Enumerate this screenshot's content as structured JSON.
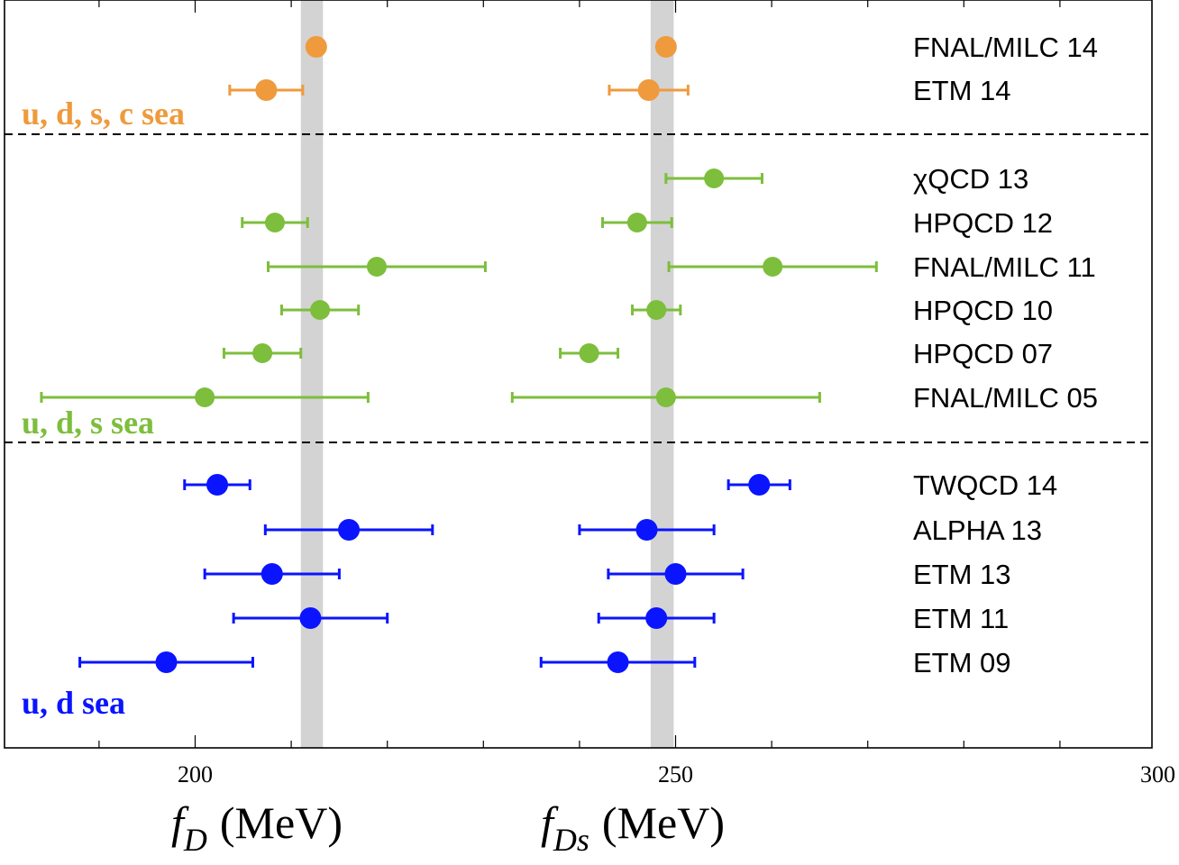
{
  "chart_data": {
    "type": "scatter",
    "panels": [
      "f_D",
      "f_Ds"
    ],
    "xlabel_left": {
      "symbol": "f",
      "sub": "D",
      "unit": "(MeV)"
    },
    "xlabel_right": {
      "symbol": "f",
      "sub": "Ds",
      "unit": "(MeV)"
    },
    "x_ticks": [
      200,
      250,
      300
    ],
    "xlim": [
      180,
      300
    ],
    "grid": false,
    "legend": "right",
    "bands": [
      {
        "panel": "f_D",
        "center": 212.15,
        "half_width": 1.15
      },
      {
        "panel": "f_Ds",
        "center": 248.6,
        "half_width": 1.2
      }
    ],
    "groups": [
      {
        "label": "u, d, s, c sea",
        "color": "#ef9a3c",
        "entries": [
          {
            "name": "FNAL/MILC 14",
            "fD": 212.6,
            "fD_err": 0.5,
            "fDs": 249.0,
            "fDs_err": 0.8
          },
          {
            "name": "ETM 14",
            "fD": 207.4,
            "fD_err": 3.8,
            "fDs": 247.2,
            "fDs_err": 4.1
          }
        ]
      },
      {
        "label": "u, d, s sea",
        "color": "#7dbe3c",
        "entries": [
          {
            "name": "χQCD 13",
            "fD": null,
            "fD_err": null,
            "fDs": 254.0,
            "fDs_err": 5.0
          },
          {
            "name": "HPQCD 12",
            "fD": 208.3,
            "fD_err": 3.4,
            "fDs": 246.0,
            "fDs_err": 3.6
          },
          {
            "name": "FNAL/MILC 11",
            "fD": 218.9,
            "fD_err": 11.3,
            "fDs": 260.1,
            "fDs_err": 10.8
          },
          {
            "name": "HPQCD 10",
            "fD": 213.0,
            "fD_err": 4.0,
            "fDs": 248.0,
            "fDs_err": 2.5
          },
          {
            "name": "HPQCD 07",
            "fD": 207.0,
            "fD_err": 4.0,
            "fDs": 241.0,
            "fDs_err": 3.0
          },
          {
            "name": "FNAL/MILC 05",
            "fD": 201.0,
            "fD_err": 17.0,
            "fDs": 249.0,
            "fDs_err": 16.0
          }
        ]
      },
      {
        "label": "u, d sea",
        "color": "#0a14ff",
        "entries": [
          {
            "name": "TWQCD 14",
            "fD": 202.3,
            "fD_err": 3.4,
            "fDs": 258.7,
            "fDs_err": 3.2
          },
          {
            "name": "ALPHA 13",
            "fD": 216.0,
            "fD_err": 8.7,
            "fDs": 247.0,
            "fDs_err": 7.0
          },
          {
            "name": "ETM 13",
            "fD": 208.0,
            "fD_err": 7.0,
            "fDs": 250.0,
            "fDs_err": 7.0
          },
          {
            "name": "ETM 11",
            "fD": 212.0,
            "fD_err": 8.0,
            "fDs": 248.0,
            "fDs_err": 6.0
          },
          {
            "name": "ETM 09",
            "fD": 197.0,
            "fD_err": 9.0,
            "fDs": 244.0,
            "fDs_err": 8.0
          }
        ]
      }
    ]
  }
}
